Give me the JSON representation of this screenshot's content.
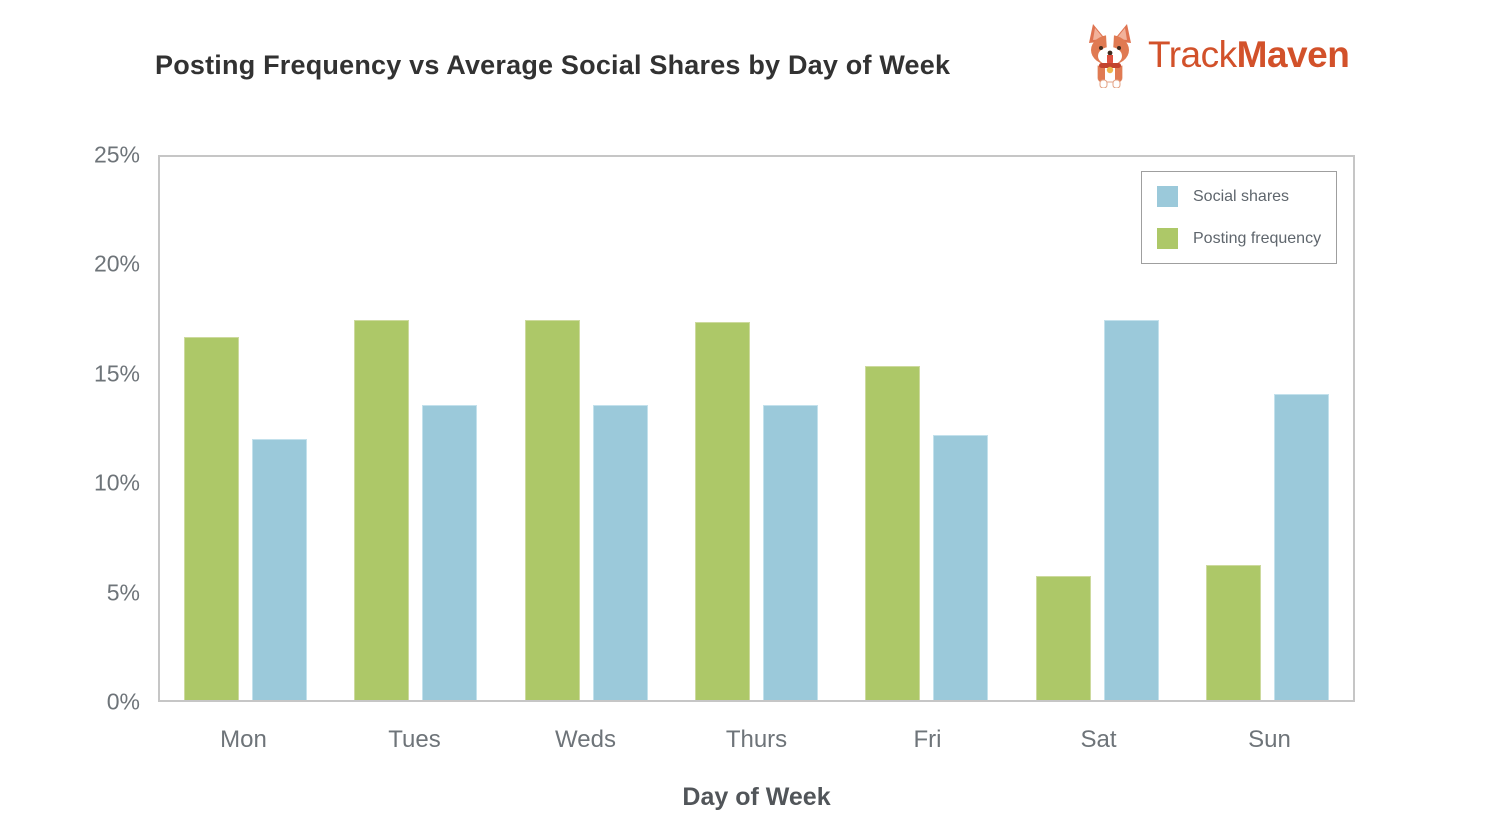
{
  "title": "Posting Frequency vs Average Social Shares by Day of Week",
  "logo": {
    "brand_regular": "Track",
    "brand_bold": "Maven",
    "brand_color": "#d2512a",
    "mascot_icon": "corgi-icon"
  },
  "legend": {
    "items": [
      {
        "label": "Social shares",
        "color": "#9bc9da"
      },
      {
        "label": "Posting frequency",
        "color": "#adc868"
      }
    ]
  },
  "chart_data": {
    "type": "bar",
    "title": "Posting Frequency vs Average Social Shares by Day of Week",
    "categories": [
      "Mon",
      "Tues",
      "Weds",
      "Thurs",
      "Fri",
      "Sat",
      "Sun"
    ],
    "series": [
      {
        "name": "Posting frequency",
        "color": "#adc868",
        "edge_color": "#cdda9e",
        "values": [
          16.7,
          17.5,
          17.5,
          17.4,
          15.4,
          5.7,
          6.2
        ]
      },
      {
        "name": "Social shares",
        "color": "#9bc9da",
        "edge_color": "#c3e1ec",
        "values": [
          12.0,
          13.6,
          13.6,
          13.6,
          12.2,
          17.5,
          14.1
        ]
      }
    ],
    "unit": "%",
    "xlabel": "Day of Week",
    "ylabel": "",
    "ylim": [
      0,
      25
    ],
    "yticks": [
      "0%",
      "5%",
      "10%",
      "15%",
      "20%",
      "25%"
    ],
    "grid": false,
    "legend_position": "top-right-inside",
    "frame_color": "#c6c6c6",
    "note_bar_order": "green posting-frequency bar drawn left of blue social-shares bar in each day group"
  }
}
